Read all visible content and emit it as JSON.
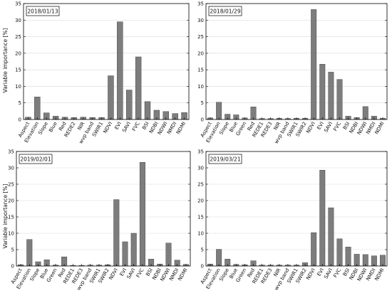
{
  "figure": {
    "ylabel": "Variable importance [%]"
  },
  "chart_data": [
    {
      "type": "bar",
      "title": "2018/01/13",
      "categories": [
        "Aspect",
        "Elevation",
        "Slope",
        "Blue",
        "Red",
        "REDE2",
        "NIR",
        "wvp band",
        "SWIR1",
        "NDVI",
        "EVI",
        "SAVI",
        "FVC",
        "BSI",
        "NDBI",
        "NDWI",
        "NMDI",
        "NDMI"
      ],
      "values": [
        0.7,
        6.8,
        2.0,
        1.0,
        0.7,
        0.6,
        0.7,
        0.6,
        0.6,
        13.2,
        29.5,
        8.9,
        18.9,
        5.4,
        2.8,
        2.4,
        1.8,
        2.1
      ],
      "xlabel": "",
      "ylabel": "Variable importance [%]",
      "ylim": [
        0,
        35
      ],
      "grid": true,
      "legend": "none"
    },
    {
      "type": "bar",
      "title": "2018/01/29",
      "categories": [
        "Aspect",
        "Elevation",
        "Slope",
        "Blue",
        "Green",
        "Red",
        "REDE1",
        "REDE3",
        "NIR",
        "wvp band",
        "SWIR1",
        "SWIR2",
        "NDVI",
        "EVI",
        "SAVI",
        "FVC",
        "BSI",
        "NDBI",
        "NDWI",
        "NMDI",
        "NDMI"
      ],
      "values": [
        0.5,
        5.2,
        1.6,
        1.4,
        0.5,
        3.8,
        0.3,
        0.3,
        0.4,
        0.3,
        0.4,
        0.4,
        33.2,
        16.7,
        14.3,
        12.1,
        1.0,
        0.6,
        3.9,
        1.0,
        0.4
      ],
      "xlabel": "",
      "ylabel": "",
      "ylim": [
        0,
        35
      ],
      "grid": true,
      "legend": "none"
    },
    {
      "type": "bar",
      "title": "2019/02/01",
      "categories": [
        "Aspect",
        "Elevation",
        "Slope",
        "Blue",
        "Green",
        "Red",
        "REDE1",
        "REDE3",
        "wvp band",
        "SWIR1",
        "SWIR2",
        "NDVI",
        "EVI",
        "SAVI",
        "FVC",
        "BSI",
        "NDBI",
        "NDWI",
        "NMDI",
        "NDMI"
      ],
      "values": [
        0.4,
        8.1,
        1.3,
        1.9,
        0.3,
        2.8,
        0.2,
        0.2,
        0.3,
        0.3,
        0.4,
        20.3,
        7.4,
        10.0,
        31.7,
        2.1,
        0.6,
        7.0,
        1.8,
        0.5
      ],
      "xlabel": "",
      "ylabel": "Variable importance [%]",
      "ylim": [
        0,
        35
      ],
      "grid": true,
      "legend": "none"
    },
    {
      "type": "bar",
      "title": "2019/03/21",
      "categories": [
        "Aspect",
        "Elevation",
        "Slope",
        "Blue",
        "Green",
        "Red",
        "REDE1",
        "REDE3",
        "NIR",
        "wvp band",
        "SWIR1",
        "SWIR2",
        "NDVI",
        "EVI",
        "SAVI",
        "FVC",
        "BSI",
        "NDBI",
        "NDWI",
        "NMDI",
        "NDMI"
      ],
      "values": [
        0.6,
        5.1,
        2.1,
        0.5,
        0.4,
        1.6,
        0.3,
        0.3,
        0.3,
        0.3,
        0.3,
        1.0,
        10.2,
        29.3,
        17.8,
        8.3,
        5.8,
        3.6,
        3.5,
        3.1,
        3.3
      ],
      "xlabel": "",
      "ylabel": "",
      "ylim": [
        0,
        35
      ],
      "grid": true,
      "legend": "none"
    }
  ]
}
